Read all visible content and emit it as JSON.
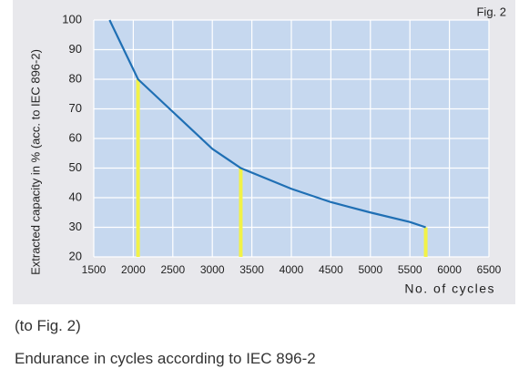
{
  "chart_data": {
    "type": "line",
    "annotations": [
      "Fig. 2"
    ],
    "ylabel": "Extracted capacity in % (acc. to IEC 896-2)",
    "xlabel": "No. of cycles",
    "x": [
      1700,
      2060,
      2500,
      3000,
      3360,
      4000,
      4500,
      5000,
      5500,
      5700
    ],
    "series": [
      {
        "color": "#1f6fb4",
        "values": [
          100,
          80,
          69,
          56.5,
          50,
          43,
          38.5,
          35,
          31.8,
          30
        ]
      }
    ],
    "highlights": {
      "color": "#f2f247",
      "x": [
        2060,
        3360,
        5700
      ],
      "values": [
        80,
        50,
        30
      ]
    },
    "xlim": [
      1500,
      6500
    ],
    "xticks": [
      1500,
      2000,
      2500,
      3000,
      3500,
      4000,
      4500,
      5000,
      5500,
      6000,
      6500
    ],
    "ylim": [
      20,
      100
    ],
    "yticks": [
      20,
      30,
      40,
      50,
      60,
      70,
      80,
      90,
      100
    ],
    "grid": true
  },
  "caption": [
    "(to Fig. 2)",
    "Endurance in cycles according to IEC 896-2"
  ]
}
